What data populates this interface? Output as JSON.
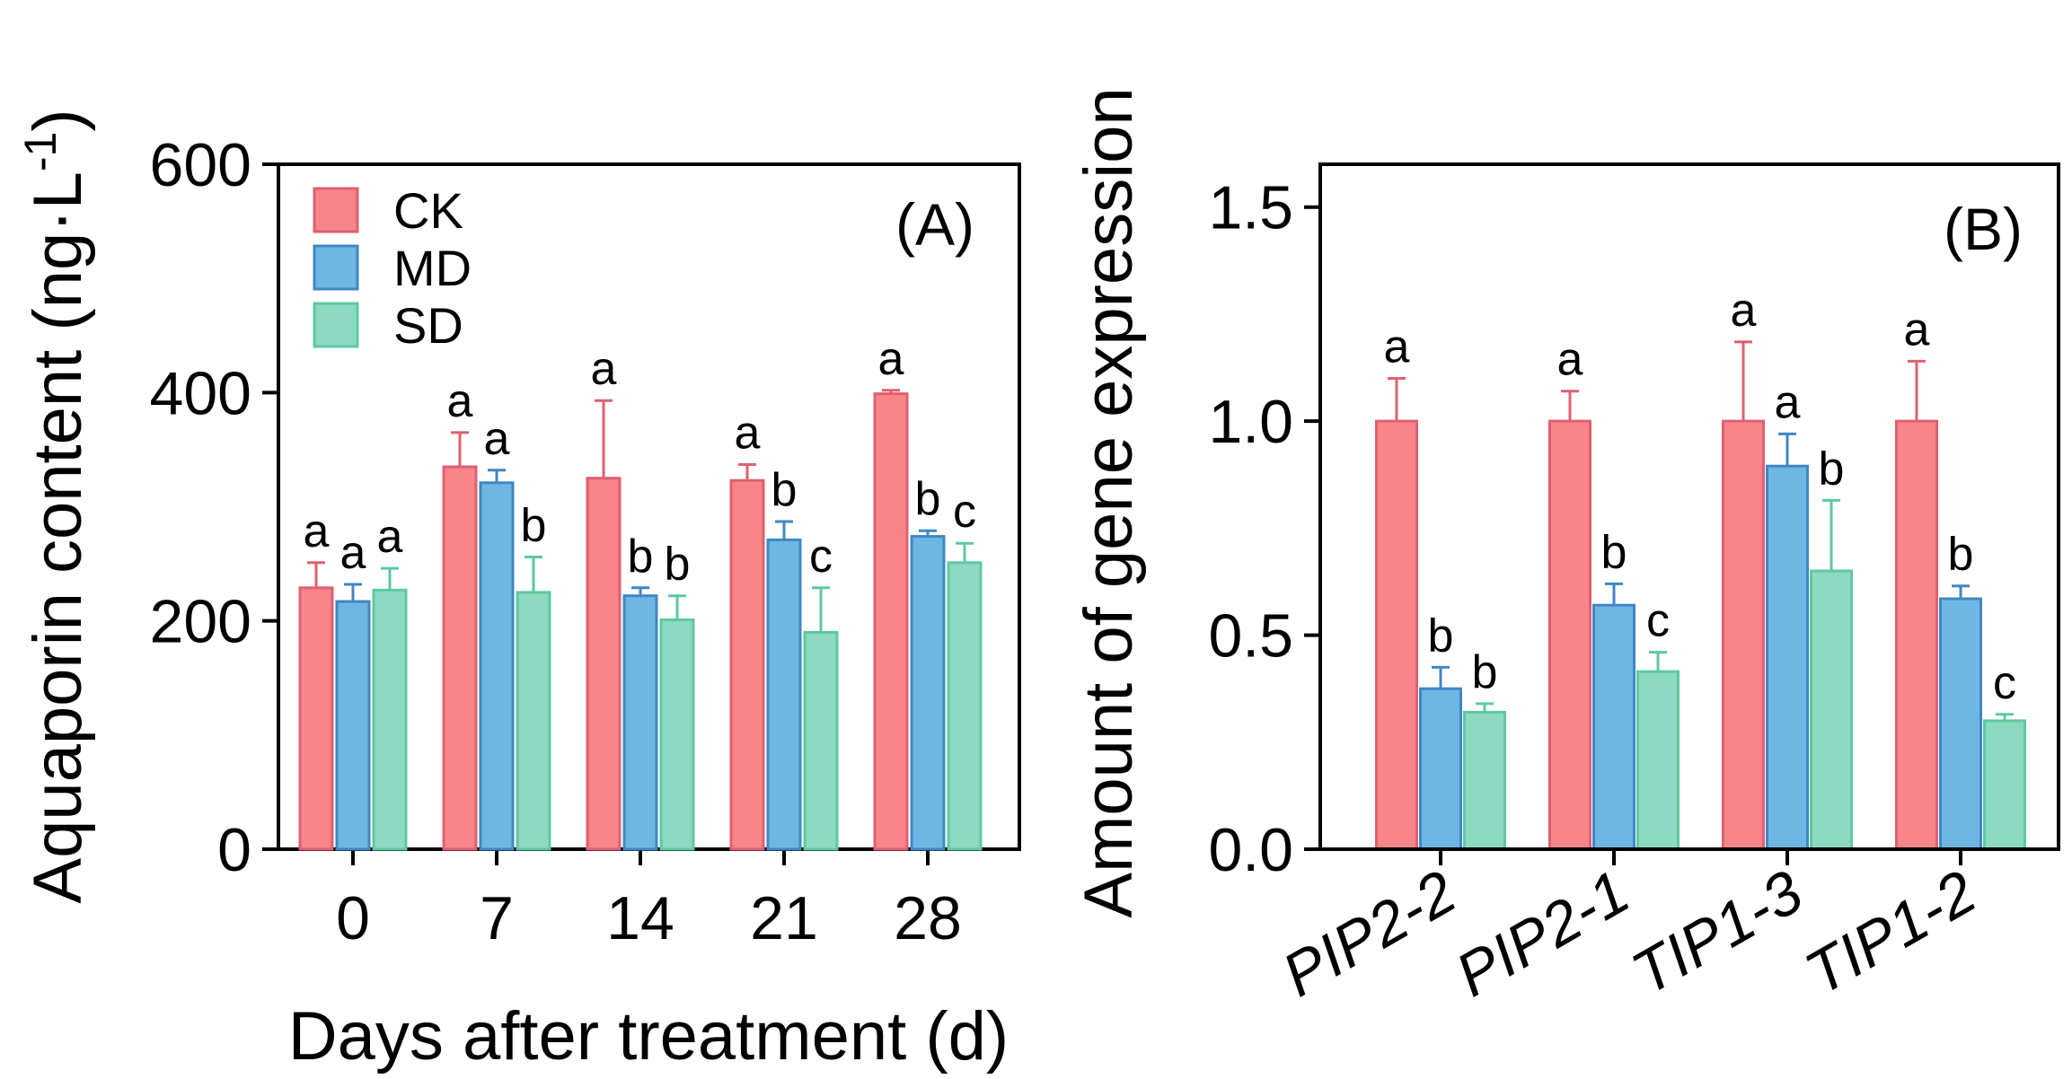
{
  "chart_data": [
    {
      "panel": "(A)",
      "type": "bar",
      "xlabel": "Days after treatment (d)",
      "ylabel_main": "Aquaporin content (ng·L",
      "ylabel_sup": "-1",
      "ylabel_close": ")",
      "ylim": [
        0,
        600
      ],
      "yticks": [
        "0",
        "200",
        "400",
        "600"
      ],
      "categories": [
        "0",
        "7",
        "14",
        "21",
        "28"
      ],
      "legend": [
        "CK",
        "MD",
        "SD"
      ],
      "legend_position": "top-left",
      "series": [
        {
          "name": "CK",
          "color": "#f8858a",
          "stroke": "#e0606f",
          "values": [
            229,
            335,
            325,
            323,
            399
          ],
          "errors": [
            22,
            30,
            68,
            14,
            3
          ],
          "labels": [
            "a",
            "a",
            "a",
            "a",
            "a"
          ]
        },
        {
          "name": "MD",
          "color": "#6fb6e3",
          "stroke": "#3f87c6",
          "values": [
            217,
            321,
            222,
            271,
            274
          ],
          "errors": [
            15,
            11,
            7,
            16,
            5
          ],
          "labels": [
            "a",
            "a",
            "b",
            "b",
            "b"
          ]
        },
        {
          "name": "SD",
          "color": "#8ed9c1",
          "stroke": "#5ec9a0",
          "values": [
            227,
            225,
            201,
            190,
            251
          ],
          "errors": [
            19,
            31,
            21,
            39,
            17
          ],
          "labels": [
            "a",
            "b",
            "b",
            "c",
            "c"
          ]
        }
      ]
    },
    {
      "panel": "(B)",
      "type": "bar",
      "xlabel": "",
      "ylabel_main": "Amount of gene expression",
      "ylim": [
        0,
        1.6
      ],
      "yticks": [
        "0.0",
        "0.5",
        "1.0",
        "1.5"
      ],
      "categories": [
        "PIP2-2",
        "PIP2-1",
        "TIP1-3",
        "TIP1-2"
      ],
      "series": [
        {
          "name": "CK",
          "color": "#f8858a",
          "stroke": "#e0606f",
          "values": [
            1.0,
            1.0,
            1.0,
            1.0
          ],
          "errors": [
            0.1,
            0.07,
            0.185,
            0.14
          ],
          "labels": [
            "a",
            "a",
            "a",
            "a"
          ]
        },
        {
          "name": "MD",
          "color": "#6fb6e3",
          "stroke": "#3f87c6",
          "values": [
            0.375,
            0.57,
            0.895,
            0.585
          ],
          "errors": [
            0.05,
            0.05,
            0.075,
            0.03
          ],
          "labels": [
            "b",
            "b",
            "a",
            "b"
          ]
        },
        {
          "name": "SD",
          "color": "#8ed9c1",
          "stroke": "#5ec9a0",
          "values": [
            0.32,
            0.415,
            0.65,
            0.3
          ],
          "errors": [
            0.02,
            0.045,
            0.165,
            0.015
          ],
          "labels": [
            "b",
            "c",
            "b",
            "c"
          ]
        }
      ]
    }
  ]
}
